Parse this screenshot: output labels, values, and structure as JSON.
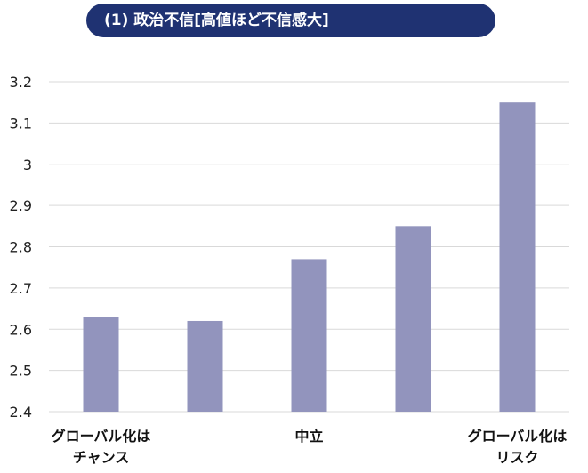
{
  "chart_data": {
    "type": "bar",
    "title": "(1) 政治不信[高値ほど不信感大]",
    "categories": [
      [
        "グローバル化は",
        "チャンス"
      ],
      [
        ""
      ],
      [
        "中立"
      ],
      [
        ""
      ],
      [
        "グローバル化は",
        "リスク"
      ]
    ],
    "values": [
      2.63,
      2.62,
      2.77,
      2.85,
      3.15
    ],
    "ylim": [
      2.4,
      3.2
    ],
    "yticks": [
      "2.4",
      "2.5",
      "2.6",
      "2.7",
      "2.8",
      "2.9",
      "3",
      "3.1",
      "3.2"
    ],
    "grid": true,
    "bar_color": "#9294bd",
    "grid_color": "#d9d9d9",
    "title_bg": "#1f3272"
  }
}
